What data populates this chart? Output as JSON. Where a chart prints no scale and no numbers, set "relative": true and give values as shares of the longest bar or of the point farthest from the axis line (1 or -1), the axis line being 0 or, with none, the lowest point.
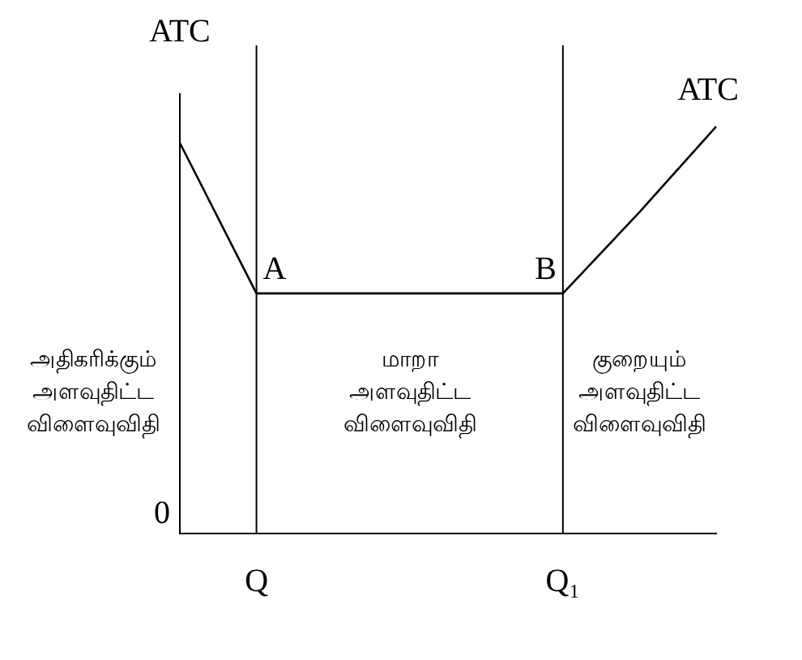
{
  "chart_data": {
    "type": "line",
    "relative": true,
    "ylabel": "ATC",
    "categories": [
      null,
      "Q",
      null,
      null,
      null,
      "Q₁",
      null,
      null
    ],
    "series": [
      {
        "name": "ATC",
        "color": "#000000",
        "values": [
          0.96,
          0.59,
          0.59,
          0.59,
          0.59,
          0.59,
          0.79,
          1
        ]
      }
    ],
    "ref_lines": [
      {
        "axis": "x",
        "value": "Q",
        "color": "#000000"
      },
      {
        "axis": "x",
        "value": "Q₁",
        "color": "#000000"
      }
    ],
    "annotations": [
      {
        "text": "A",
        "x": "Q",
        "y": 0.59
      },
      {
        "text": "B",
        "x": "Q₁",
        "y": 0.59
      },
      "அதிகரிக்கும்\nஅளவுதிட்ட\nவிளைவுவிதி",
      "மாறா\nஅளவுதிட்ட\nவிளைவுவிதி",
      "குறையும்\nஅளவுதிட்ட\nவிளைவுவிதி",
      "0"
    ],
    "tick_labels": "x",
    "grid": false,
    "legend": false,
    "marker": "none",
    "line_style": "solid"
  }
}
